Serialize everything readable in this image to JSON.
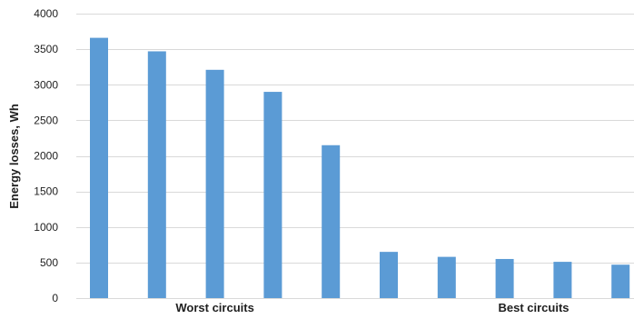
{
  "chart_data": {
    "type": "bar",
    "categories": [
      "",
      "",
      "",
      "",
      "",
      "",
      "",
      "",
      "",
      ""
    ],
    "values": [
      3660,
      3470,
      3210,
      2900,
      2150,
      650,
      580,
      550,
      510,
      470
    ],
    "title": "",
    "xlabel": "",
    "ylabel": "Energy losses, Wh",
    "ylim": [
      0,
      4000
    ],
    "yticks": [
      0,
      500,
      1000,
      1500,
      2000,
      2500,
      3000,
      3500,
      4000
    ],
    "ytick_labels": [
      "0",
      "500",
      "1000",
      "1500",
      "2000",
      "2500",
      "3000",
      "3500",
      "4000"
    ],
    "group_labels": [
      {
        "label": "Worst circuits",
        "center_index": 2
      },
      {
        "label": "Best circuits",
        "center_index": 7.5
      }
    ],
    "grid": true,
    "legend": "none",
    "colors": {
      "bar": "#5b9bd5",
      "grid": "#d9d9d9",
      "text": "#1f1f1f"
    }
  }
}
